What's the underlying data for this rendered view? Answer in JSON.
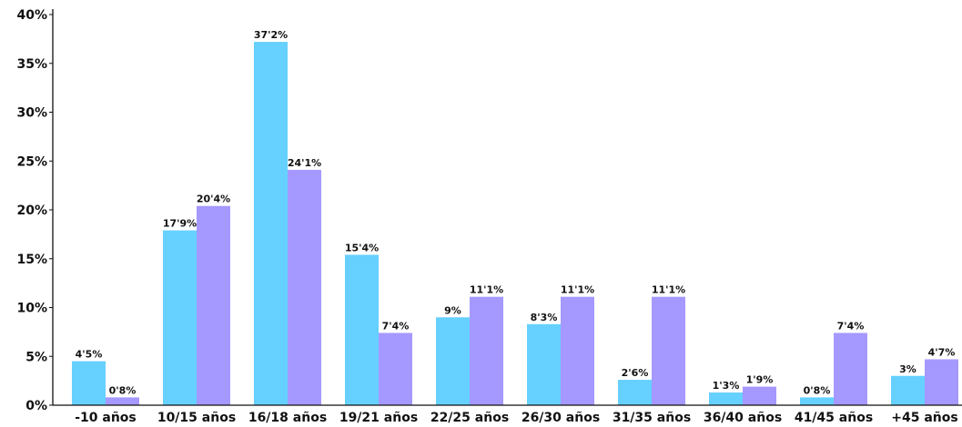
{
  "chart_data": {
    "type": "bar",
    "title": "",
    "xlabel": "",
    "ylabel": "",
    "ylim": [
      0,
      40
    ],
    "yticks": [
      "0%",
      "5%",
      "10%",
      "15%",
      "20%",
      "25%",
      "30%",
      "35%",
      "40%"
    ],
    "grid": false,
    "legend": "none",
    "categories": [
      "-10 años",
      "10/15 años",
      "16/18 años",
      "19/21 años",
      "22/25 años",
      "26/30 años",
      "31/35 años",
      "36/40 años",
      "41/45 años",
      "+45 años"
    ],
    "series": [
      {
        "color": "#66d0ff",
        "values": [
          4.5,
          17.9,
          37.2,
          15.4,
          9,
          8.3,
          2.6,
          1.3,
          0.8,
          3
        ],
        "labels": [
          "4'5%",
          "17'9%",
          "37'2%",
          "15'4%",
          "9%",
          "8'3%",
          "2'6%",
          "1'3%",
          "0'8%",
          "3%"
        ]
      },
      {
        "color": "#a599ff",
        "values": [
          0.8,
          20.4,
          24.1,
          7.4,
          11.1,
          11.1,
          11.1,
          1.9,
          7.4,
          4.7
        ],
        "labels": [
          "0'8%",
          "20'4%",
          "24'1%",
          "7'4%",
          "11'1%",
          "11'1%",
          "11'1%",
          "1'9%",
          "7'4%",
          "4'7%"
        ]
      }
    ]
  }
}
